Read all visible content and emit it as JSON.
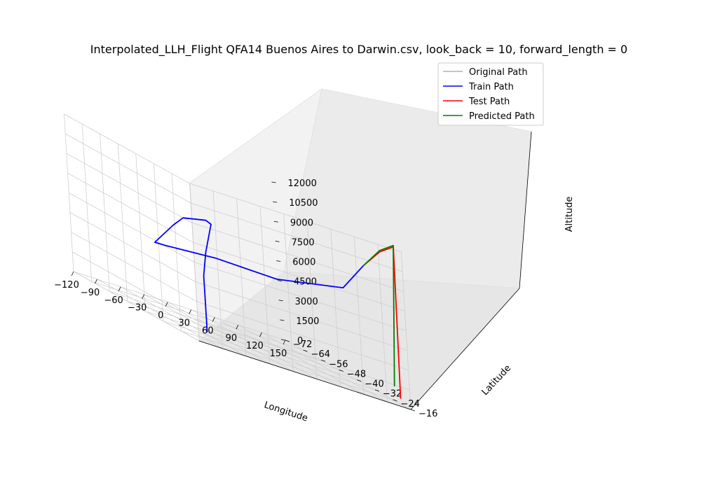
{
  "chart_data": {
    "type": "line",
    "title": "Interpolated_LLH_Flight QFA14 Buenos Aires to Darwin.csv, look_back = 10, forward_length = 0",
    "xlabel": "Longitude",
    "ylabel": "Latitude",
    "zlabel": "Altitude",
    "projection": "3d",
    "grid": true,
    "xlim": [
      -120,
      150
    ],
    "ylim": [
      -72,
      -16
    ],
    "zlim": [
      0,
      12000
    ],
    "x_ticks": [
      "−120",
      "−90",
      "−60",
      "−30",
      "0",
      "30",
      "60",
      "90",
      "120",
      "150"
    ],
    "y_ticks": [
      "−16",
      "−24",
      "−32",
      "−40",
      "−48",
      "−56",
      "−64",
      "−72"
    ],
    "z_ticks": [
      "0",
      "1500",
      "3000",
      "4500",
      "6000",
      "7500",
      "9000",
      "10500",
      "12000"
    ],
    "legend": {
      "placement": "upper right",
      "entries": [
        {
          "label": "Original Path",
          "color": "#b0b0b0"
        },
        {
          "label": "Train Path",
          "color": "#0000ff"
        },
        {
          "label": "Test Path",
          "color": "#ff0000"
        },
        {
          "label": "Predicted Path",
          "color": "#008000"
        }
      ]
    },
    "series": [
      {
        "name": "Train Path",
        "color": "#0000ff",
        "points": [
          [
            -58,
            -34,
            200
          ],
          [
            -61,
            -33,
            4500
          ],
          [
            -65,
            -30,
            6500
          ],
          [
            -70,
            -25,
            9000
          ],
          [
            -85,
            -22,
            9300
          ],
          [
            -120,
            -20,
            9000
          ],
          [
            -105,
            -30,
            7800
          ],
          [
            -60,
            -55,
            5000
          ],
          [
            -10,
            -68,
            4500
          ],
          [
            60,
            -70,
            4700
          ],
          [
            110,
            -60,
            5000
          ],
          [
            125,
            -35,
            7000
          ],
          [
            128,
            -26,
            9600
          ]
        ]
      },
      {
        "name": "Test Path",
        "color": "#ff0000",
        "points": [
          [
            128,
            -26,
            9600
          ],
          [
            133,
            -20,
            11300
          ],
          [
            140,
            -16,
            12200
          ],
          [
            132,
            -14,
            700
          ]
        ]
      },
      {
        "name": "Predicted Path",
        "color": "#008000",
        "points": [
          [
            128,
            -26,
            9600
          ],
          [
            133,
            -20,
            11400
          ],
          [
            140,
            -16,
            12300
          ],
          [
            125,
            -14,
            1500
          ]
        ]
      }
    ]
  }
}
